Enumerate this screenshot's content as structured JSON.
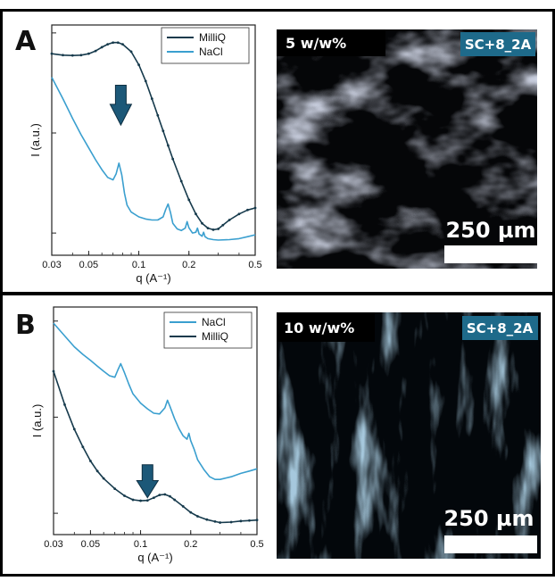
{
  "colors": {
    "milliq": "#163a4c",
    "nacl": "#3a9fcf",
    "arrow": "#1c5878",
    "badge_bg": "#1e6a8a",
    "frame": "#000000"
  },
  "icons": {
    "arrow": "arrow-down-icon"
  },
  "panels": [
    {
      "letter": "A",
      "concentration": "5 w/w%",
      "sample": "SC+8_2A",
      "scale_bar": "250 µm",
      "micrograph": {
        "illumination": "light",
        "texture": "diffuse-clouds"
      }
    },
    {
      "letter": "B",
      "concentration": "10 w/w%",
      "sample": "SC+8_2A",
      "scale_bar": "250 µm",
      "micrograph": {
        "illumination": "dark",
        "texture": "oriented-fibres"
      }
    }
  ],
  "chart_data": [
    {
      "type": "line",
      "panel": "A",
      "xlabel": "q (A⁻¹)",
      "ylabel": "I (a.u.)",
      "x_scale": "log",
      "y_scale": "log",
      "xlim": [
        0.03,
        0.5
      ],
      "ylim": [
        0.6,
        120
      ],
      "xticks": [
        0.03,
        0.05,
        0.1,
        0.2,
        0.5
      ],
      "xtick_labels": [
        "0.03",
        "0.05",
        "0.1",
        "0.2",
        "0.5"
      ],
      "yticks": [
        1,
        10,
        100
      ],
      "grid": false,
      "legend": "top-right",
      "series": [
        {
          "name": "MilliQ",
          "x": [
            0.03,
            0.035,
            0.04,
            0.045,
            0.05,
            0.055,
            0.06,
            0.065,
            0.07,
            0.075,
            0.08,
            0.09,
            0.1,
            0.11,
            0.12,
            0.13,
            0.14,
            0.15,
            0.16,
            0.18,
            0.2,
            0.22,
            0.24,
            0.26,
            0.28,
            0.3,
            0.32,
            0.35,
            0.4,
            0.45,
            0.5
          ],
          "y": [
            62,
            60,
            59.5,
            60,
            62,
            66,
            72,
            77,
            80,
            80,
            77,
            65,
            48,
            33,
            22,
            15,
            10.5,
            7.5,
            5.5,
            3.3,
            2.15,
            1.55,
            1.25,
            1.12,
            1.08,
            1.1,
            1.2,
            1.35,
            1.55,
            1.7,
            1.78
          ]
        },
        {
          "name": "NaCl",
          "x": [
            0.03,
            0.035,
            0.04,
            0.045,
            0.05,
            0.055,
            0.06,
            0.065,
            0.07,
            0.073,
            0.076,
            0.079,
            0.082,
            0.085,
            0.09,
            0.1,
            0.11,
            0.12,
            0.13,
            0.14,
            0.145,
            0.15,
            0.155,
            0.16,
            0.17,
            0.18,
            0.19,
            0.195,
            0.2,
            0.21,
            0.22,
            0.225,
            0.23,
            0.24,
            0.245,
            0.25,
            0.26,
            0.28,
            0.3,
            0.35,
            0.4,
            0.45,
            0.5
          ],
          "y": [
            36,
            22,
            14,
            9.6,
            7.1,
            5.4,
            4.3,
            3.6,
            3.4,
            3.9,
            5.0,
            3.8,
            2.5,
            1.9,
            1.62,
            1.45,
            1.38,
            1.35,
            1.35,
            1.45,
            1.72,
            1.95,
            1.6,
            1.25,
            1.1,
            1.06,
            1.12,
            1.3,
            1.13,
            1.0,
            1.02,
            1.12,
            0.98,
            0.93,
            1.02,
            0.92,
            0.88,
            0.86,
            0.85,
            0.86,
            0.88,
            0.92,
            0.96
          ]
        }
      ],
      "annotation": {
        "type": "arrow-down",
        "x": 0.078,
        "y_top": 30,
        "y_tip": 12
      }
    },
    {
      "type": "line",
      "panel": "B",
      "xlabel": "q (A⁻¹)",
      "ylabel": "I (a.u.)",
      "x_scale": "log",
      "y_scale": "log",
      "xlim": [
        0.03,
        0.5
      ],
      "ylim": [
        0.6,
        140
      ],
      "xticks": [
        0.03,
        0.05,
        0.1,
        0.2,
        0.5
      ],
      "xtick_labels": [
        "0.03",
        "0.05",
        "0.1",
        "0.2",
        "0.5"
      ],
      "yticks": [
        1,
        10,
        100
      ],
      "grid": false,
      "legend": "top-right",
      "series": [
        {
          "name": "NaCl",
          "x": [
            0.03,
            0.035,
            0.04,
            0.045,
            0.05,
            0.055,
            0.06,
            0.065,
            0.07,
            0.073,
            0.076,
            0.08,
            0.085,
            0.09,
            0.1,
            0.11,
            0.12,
            0.13,
            0.14,
            0.145,
            0.15,
            0.16,
            0.17,
            0.18,
            0.19,
            0.195,
            0.2,
            0.21,
            0.22,
            0.24,
            0.26,
            0.28,
            0.3,
            0.35,
            0.4,
            0.45,
            0.5
          ],
          "y": [
            95,
            70,
            54,
            45,
            39,
            34,
            30,
            27,
            26,
            31,
            36,
            29,
            22,
            17.5,
            14,
            12.2,
            11,
            10.8,
            12.5,
            15,
            13,
            9.6,
            7.6,
            6.4,
            5.9,
            6.8,
            5.7,
            4.6,
            3.6,
            2.85,
            2.4,
            2.25,
            2.25,
            2.4,
            2.6,
            2.75,
            2.9
          ]
        },
        {
          "name": "MilliQ",
          "x": [
            0.03,
            0.035,
            0.04,
            0.045,
            0.05,
            0.055,
            0.06,
            0.07,
            0.08,
            0.09,
            0.1,
            0.11,
            0.12,
            0.13,
            0.14,
            0.15,
            0.16,
            0.18,
            0.2,
            0.22,
            0.25,
            0.28,
            0.3,
            0.35,
            0.4,
            0.45,
            0.5
          ],
          "y": [
            30,
            13.5,
            7.5,
            4.9,
            3.5,
            2.75,
            2.3,
            1.8,
            1.52,
            1.38,
            1.35,
            1.36,
            1.45,
            1.55,
            1.57,
            1.5,
            1.38,
            1.18,
            1.02,
            0.93,
            0.86,
            0.82,
            0.8,
            0.81,
            0.83,
            0.84,
            0.85
          ]
        }
      ],
      "annotation": {
        "type": "arrow-down",
        "x": 0.11,
        "y_top": 3.2,
        "y_tip": 1.45
      }
    }
  ]
}
